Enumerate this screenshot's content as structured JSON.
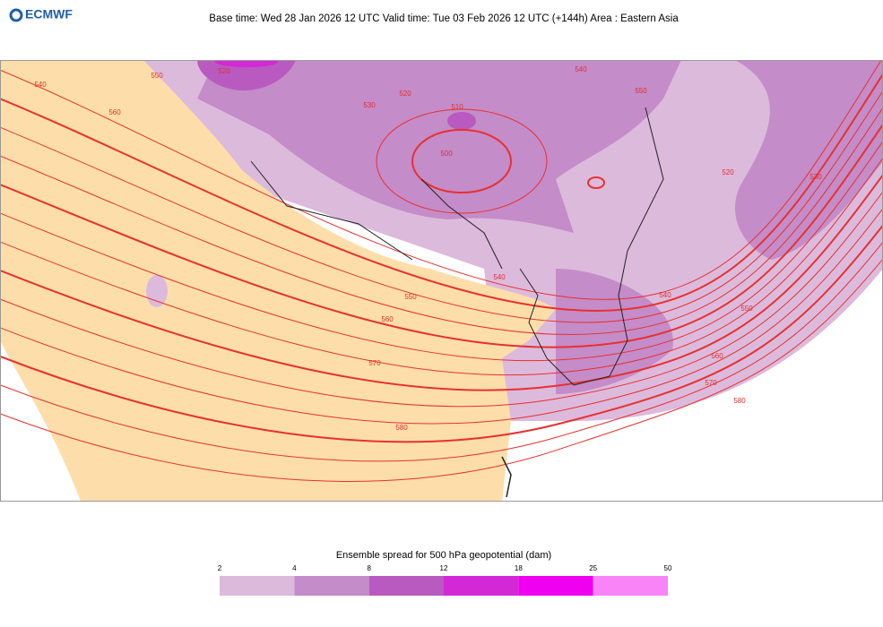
{
  "header": {
    "logo": "ECMWF",
    "title": "Base time: Wed 28 Jan 2026 12 UTC Valid time: Tue 03 Feb 2026 12 UTC (+144h) Area : Eastern Asia"
  },
  "map": {
    "contour_labels": [
      540,
      560,
      550,
      520,
      530,
      520,
      510,
      500,
      540,
      550,
      520,
      530,
      540,
      550,
      560,
      570,
      580,
      540,
      550,
      560,
      570,
      580
    ]
  },
  "legend": {
    "title": "Ensemble spread for 500 hPa geopotential (dam)",
    "ticks": [
      2,
      4,
      8,
      12,
      18,
      25,
      50
    ],
    "colors": [
      "#dcbadc",
      "#c48cc8",
      "#b85ac0",
      "#d228d6",
      "#f000f0",
      "#f884f8"
    ]
  }
}
